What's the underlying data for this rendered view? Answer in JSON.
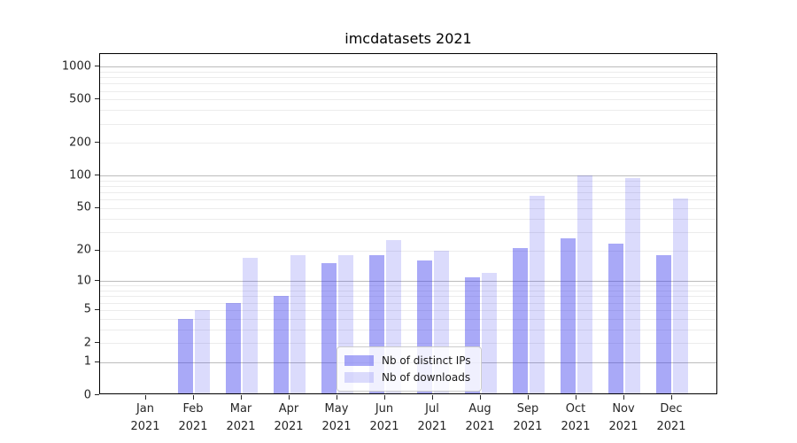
{
  "title": "imcdatasets 2021",
  "chart_data": {
    "type": "bar",
    "title": "imcdatasets 2021",
    "categories": [
      "Jan 2021",
      "Feb 2021",
      "Mar 2021",
      "Apr 2021",
      "May 2021",
      "Jun 2021",
      "Jul 2021",
      "Aug 2021",
      "Sep 2021",
      "Oct 2021",
      "Nov 2021",
      "Dec 2021"
    ],
    "series": [
      {
        "name": "Nb of distinct IPs",
        "color": "#a9a9f4",
        "fill": "rgba(64,64,238,0.45)",
        "values": [
          0,
          4,
          6,
          7,
          15,
          18,
          16,
          11,
          21,
          26,
          23,
          18
        ]
      },
      {
        "name": "Nb of downloads",
        "color": "#d9d9fa",
        "fill": "rgba(64,64,238,0.19)",
        "values": [
          0,
          5,
          17,
          18,
          18,
          25,
          20,
          12,
          65,
          100,
          95,
          62
        ]
      }
    ],
    "xlabel": "",
    "ylabel": "",
    "yscale": "symlog",
    "ylim": [
      0,
      1300
    ],
    "yticks": [
      0,
      1,
      2,
      5,
      10,
      20,
      50,
      100,
      200,
      500,
      1000
    ],
    "ytick_labels": [
      "0",
      "1",
      "2",
      "5",
      "10",
      "20",
      "50",
      "100",
      "200",
      "500",
      "1000"
    ],
    "major_gridlines": [
      1,
      10,
      100,
      1000
    ],
    "minor_gridlines": [
      2,
      3,
      4,
      5,
      6,
      7,
      8,
      9,
      20,
      30,
      40,
      50,
      60,
      70,
      80,
      90,
      200,
      300,
      400,
      500,
      600,
      700,
      800,
      900
    ],
    "grid": true,
    "legend": {
      "position": "lower center"
    }
  },
  "colors": {
    "bar_distinct_ips": "#a9a9f4",
    "bar_downloads": "#d9d9fa",
    "major_gridline": "#bcbcbc",
    "minor_gridline": "#ececec",
    "axis": "#000000",
    "tick_text": "#262626",
    "background": "#ffffff"
  }
}
